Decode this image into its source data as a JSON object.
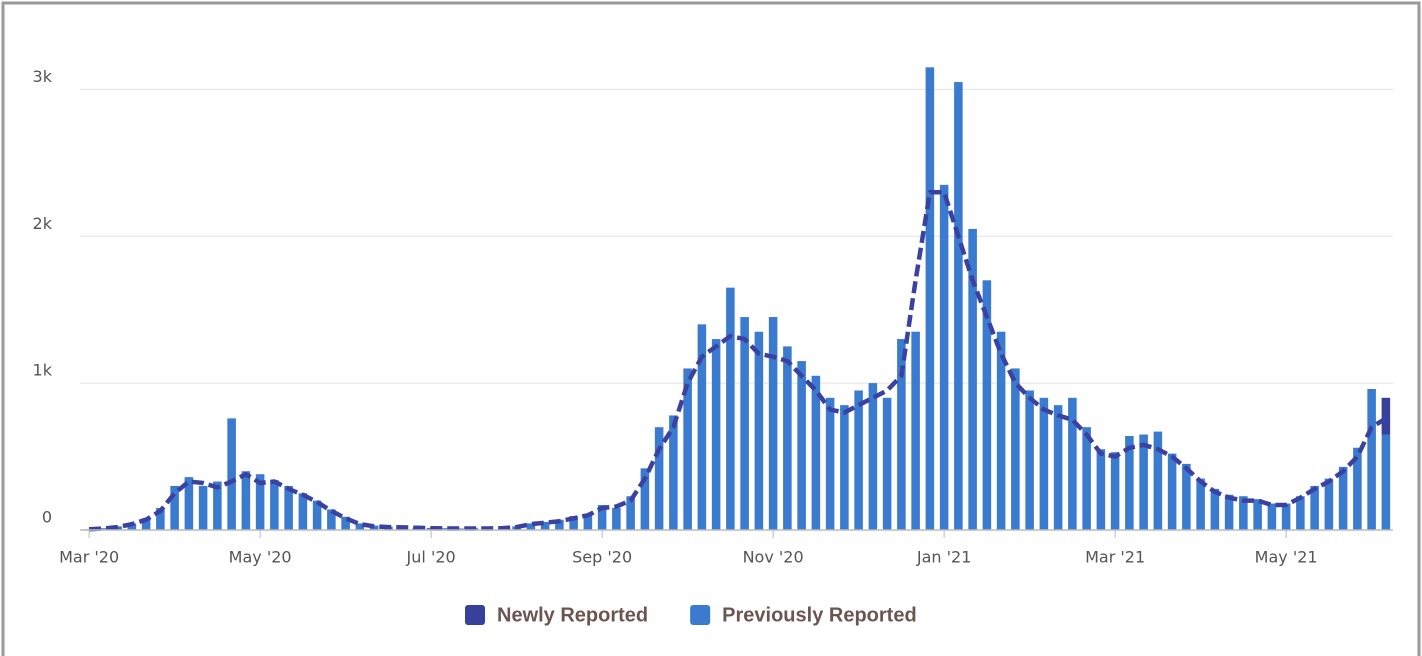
{
  "chart_data": {
    "type": "bar",
    "stacked": true,
    "categories": [
      "Mar '20",
      null,
      null,
      null,
      null,
      null,
      null,
      null,
      null,
      null,
      null,
      null,
      "May '20",
      null,
      null,
      null,
      null,
      null,
      null,
      null,
      null,
      null,
      null,
      null,
      "Jul '20",
      null,
      null,
      null,
      null,
      null,
      null,
      null,
      null,
      null,
      null,
      null,
      "Sep '20",
      null,
      null,
      null,
      null,
      null,
      null,
      null,
      null,
      null,
      null,
      null,
      "Nov '20",
      null,
      null,
      null,
      null,
      null,
      null,
      null,
      null,
      null,
      null,
      null,
      "Jan '21",
      null,
      null,
      null,
      null,
      null,
      null,
      null,
      null,
      null,
      null,
      null,
      "Mar '21",
      null,
      null,
      null,
      null,
      null,
      null,
      null,
      null,
      null,
      null,
      null,
      "May '21",
      null,
      null,
      null,
      null,
      null,
      null,
      null
    ],
    "series": [
      {
        "name": "Previously Reported",
        "color": "#3a7bd0",
        "values": [
          5,
          12,
          25,
          45,
          80,
          150,
          300,
          360,
          300,
          330,
          760,
          400,
          380,
          340,
          300,
          250,
          200,
          140,
          90,
          45,
          30,
          22,
          20,
          16,
          14,
          12,
          10,
          12,
          11,
          14,
          25,
          45,
          55,
          70,
          95,
          110,
          170,
          150,
          230,
          420,
          700,
          780,
          1100,
          1400,
          1300,
          1650,
          1450,
          1350,
          1450,
          1250,
          1150,
          1050,
          900,
          850,
          950,
          1000,
          900,
          1300,
          1350,
          3150,
          2350,
          3050,
          2050,
          1700,
          1350,
          1100,
          950,
          900,
          850,
          900,
          700,
          550,
          530,
          640,
          650,
          670,
          520,
          450,
          350,
          280,
          240,
          230,
          210,
          180,
          180,
          230,
          300,
          350,
          430,
          560,
          960,
          650
        ]
      },
      {
        "name": "Newly Reported",
        "color": "#37409a",
        "values": [
          0,
          0,
          0,
          0,
          0,
          0,
          0,
          0,
          0,
          0,
          0,
          0,
          0,
          0,
          0,
          0,
          0,
          0,
          0,
          0,
          0,
          0,
          0,
          0,
          0,
          0,
          0,
          0,
          0,
          0,
          0,
          0,
          0,
          0,
          0,
          0,
          0,
          0,
          0,
          0,
          0,
          0,
          0,
          0,
          0,
          0,
          0,
          0,
          0,
          0,
          0,
          0,
          0,
          0,
          0,
          0,
          0,
          0,
          0,
          0,
          0,
          0,
          0,
          0,
          0,
          0,
          0,
          0,
          0,
          0,
          0,
          0,
          0,
          0,
          0,
          0,
          0,
          0,
          0,
          0,
          0,
          0,
          0,
          0,
          0,
          0,
          0,
          0,
          0,
          0,
          0,
          250
        ]
      },
      {
        "type": "line",
        "dashed": true,
        "color": "#3b41a0",
        "values": [
          5,
          10,
          20,
          40,
          70,
          130,
          250,
          330,
          320,
          290,
          330,
          380,
          320,
          330,
          280,
          240,
          190,
          130,
          80,
          40,
          25,
          20,
          18,
          15,
          12,
          10,
          10,
          10,
          10,
          12,
          20,
          40,
          50,
          60,
          80,
          100,
          150,
          160,
          200,
          350,
          550,
          700,
          1000,
          1180,
          1250,
          1320,
          1300,
          1200,
          1180,
          1150,
          1050,
          950,
          820,
          800,
          850,
          900,
          950,
          1050,
          1700,
          2300,
          2300,
          2000,
          1700,
          1450,
          1200,
          1000,
          900,
          820,
          780,
          750,
          650,
          520,
          500,
          560,
          580,
          550,
          500,
          420,
          330,
          260,
          220,
          200,
          200,
          170,
          170,
          220,
          280,
          330,
          400,
          500,
          700,
          760
        ]
      }
    ],
    "legend_order": [
      1,
      0
    ],
    "ylim": [
      0,
      3200
    ],
    "yticks": [
      0,
      {
        "value": 1000,
        "label": "1k"
      },
      {
        "value": 2000,
        "label": "2k"
      },
      {
        "value": 3000,
        "label": "3k"
      }
    ],
    "grid": true
  }
}
